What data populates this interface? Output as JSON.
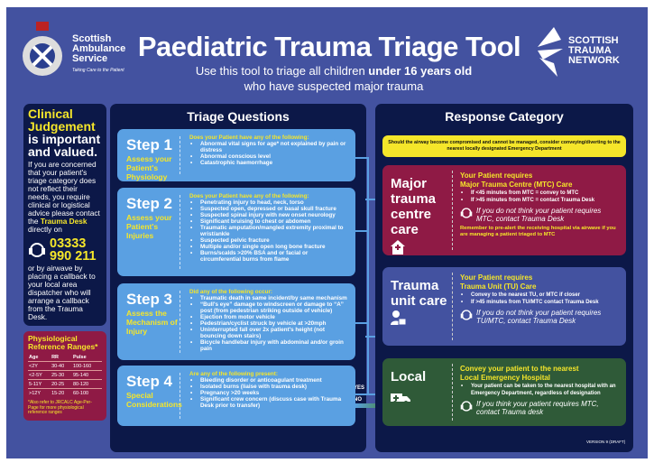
{
  "header": {
    "org_left": [
      "Scottish",
      "Ambulance",
      "Service"
    ],
    "org_left_tagline": "Taking Care to the Patient",
    "title": "Paediatric Trauma Triage Tool",
    "subtitle_pre": "Use this tool to triage all children ",
    "subtitle_bold": "under 16 years old",
    "subtitle_line2": "who have suspected major trauma",
    "org_right": [
      "SCOTTISH",
      "TRAUMA",
      "NETWORK"
    ]
  },
  "clinical": {
    "h1": "Clinical",
    "h2": "Judgement",
    "h3": "is important",
    "h4": "and valued.",
    "body1": "If you are concerned that your patient's triage category does not reflect their needs, you require clinical or logistical advice please contact the ",
    "desk": "Trauma Desk",
    "body2": " directly on",
    "phone1": "03333",
    "phone2": "990 211",
    "body3": "or by airwave by placing a callback to your local area dispatcher who will arrange a callback from the Trauma Desk."
  },
  "reference": {
    "title": "Physiological Reference Ranges*",
    "columns": [
      "Age",
      "RR",
      "Pulse"
    ],
    "rows": [
      [
        "<2Y",
        "30-40",
        "100-160"
      ],
      [
        "<2-5Y",
        "25-30",
        "95-140"
      ],
      [
        "5-11Y",
        "20-25",
        "80-120"
      ],
      [
        ">12Y",
        "15-20",
        "60-100"
      ]
    ],
    "note": "*Also refer to JRCALC Age-Per-Page for more physiological reference ranges"
  },
  "triage": {
    "title": "Triage Questions",
    "steps": [
      {
        "step": "Step 1",
        "label": "Assess your Patient's Physiology",
        "question": "Does your Patient have any of the following:",
        "items": [
          "Abnormal vital signs for age* not explained by pain or distress",
          "Abnormal conscious level",
          "Catastrophic haemorrhage"
        ]
      },
      {
        "step": "Step 2",
        "label": "Assess your Patient's Injuries",
        "question": "Does your Patient have any of the following:",
        "items": [
          "Penetrating injury to head, neck, torso",
          "Suspected open, depressed or basal skull fracture",
          "Suspected spinal injury with new onset neurology",
          "Significant bruising to chest or abdomen",
          "Traumatic amputation/mangled extremity proximal to wrist/ankle",
          "Suspected pelvic fracture",
          "Multiple and/or single open long bone fracture",
          "Burns/scalds >20% BSA and or facial or circumferential burns from flame"
        ]
      },
      {
        "step": "Step 3",
        "label": "Assess the Mechanism of Injury",
        "question": "Did any of the following occur:",
        "items": [
          "Traumatic death in same incident/by same mechanism",
          "“Bull's eye” damage to windscreen or damage to “A” post (from pedestrian striking outside of vehicle)",
          "Ejection from motor vehicle",
          "Pedestrian/cyclist struck by vehicle at >20mph",
          "Uninterrupted fall over 2x patient's height (not bouncing down stairs)",
          "Bicycle handlebar injury with abdominal and/or groin pain"
        ]
      },
      {
        "step": "Step 4",
        "label": "Special Considerations",
        "question": "Are any of the following present:",
        "items": [
          "Bleeding disorder or anticoagulant treatment",
          "Isolated burns (liaise with trauma desk)",
          "Pregnancy >20 weeks",
          "Significant crew concern (discuss case with Trauma Desk prior to transfer)"
        ]
      }
    ],
    "yes": "YES",
    "no": "NO"
  },
  "response": {
    "title": "Response Category",
    "banner": "Should the airway become compromised and cannot be managed, consider conveying/diverting to the nearest locally designated Emergency Department",
    "mtc": {
      "label": "Major trauma centre care",
      "h1": "Your Patient requires",
      "h2": "Major Trauma Centre (MTC) Care",
      "items": [
        "If <45 minutes from MTC = convey to MTC",
        "If >45 minutes from MTC = contact Trauma Desk"
      ],
      "italic": "If you do not think your patient requires MTC, contact Trauma Desk",
      "note": "Remember to pre-alert the receiving hospital via airwave if you are managing a patient triaged to MTC",
      "color": "#8f1a45"
    },
    "tu": {
      "label": "Trauma unit care",
      "h1": "Your Patient requires",
      "h2": "Trauma Unit (TU) Care",
      "items": [
        "Convey to the nearest TU, or MTC if closer",
        "If >45 minutes from TU/MTC contact Trauma Desk"
      ],
      "italic": "If you do not think your patient requires TU/MTC, contact Trauma Desk",
      "color": "#4352a0"
    },
    "local": {
      "label": "Local",
      "h1": "Convey your patient to the nearest",
      "h2": "Local Emergency Hospital",
      "items": [
        "Your patient can be taken to the nearest hospital with an Emergency Department, regardless of designation"
      ],
      "italic": "If you think your patient requires MTC, contact Trauma desk",
      "color": "#2f5a38"
    }
  },
  "version": "VERSION 9 (DRAFT)",
  "icons": {
    "headset": "headset-icon",
    "hospital": "hospital-icon",
    "medic": "medic-icon",
    "ambulance": "ambulance-icon"
  }
}
